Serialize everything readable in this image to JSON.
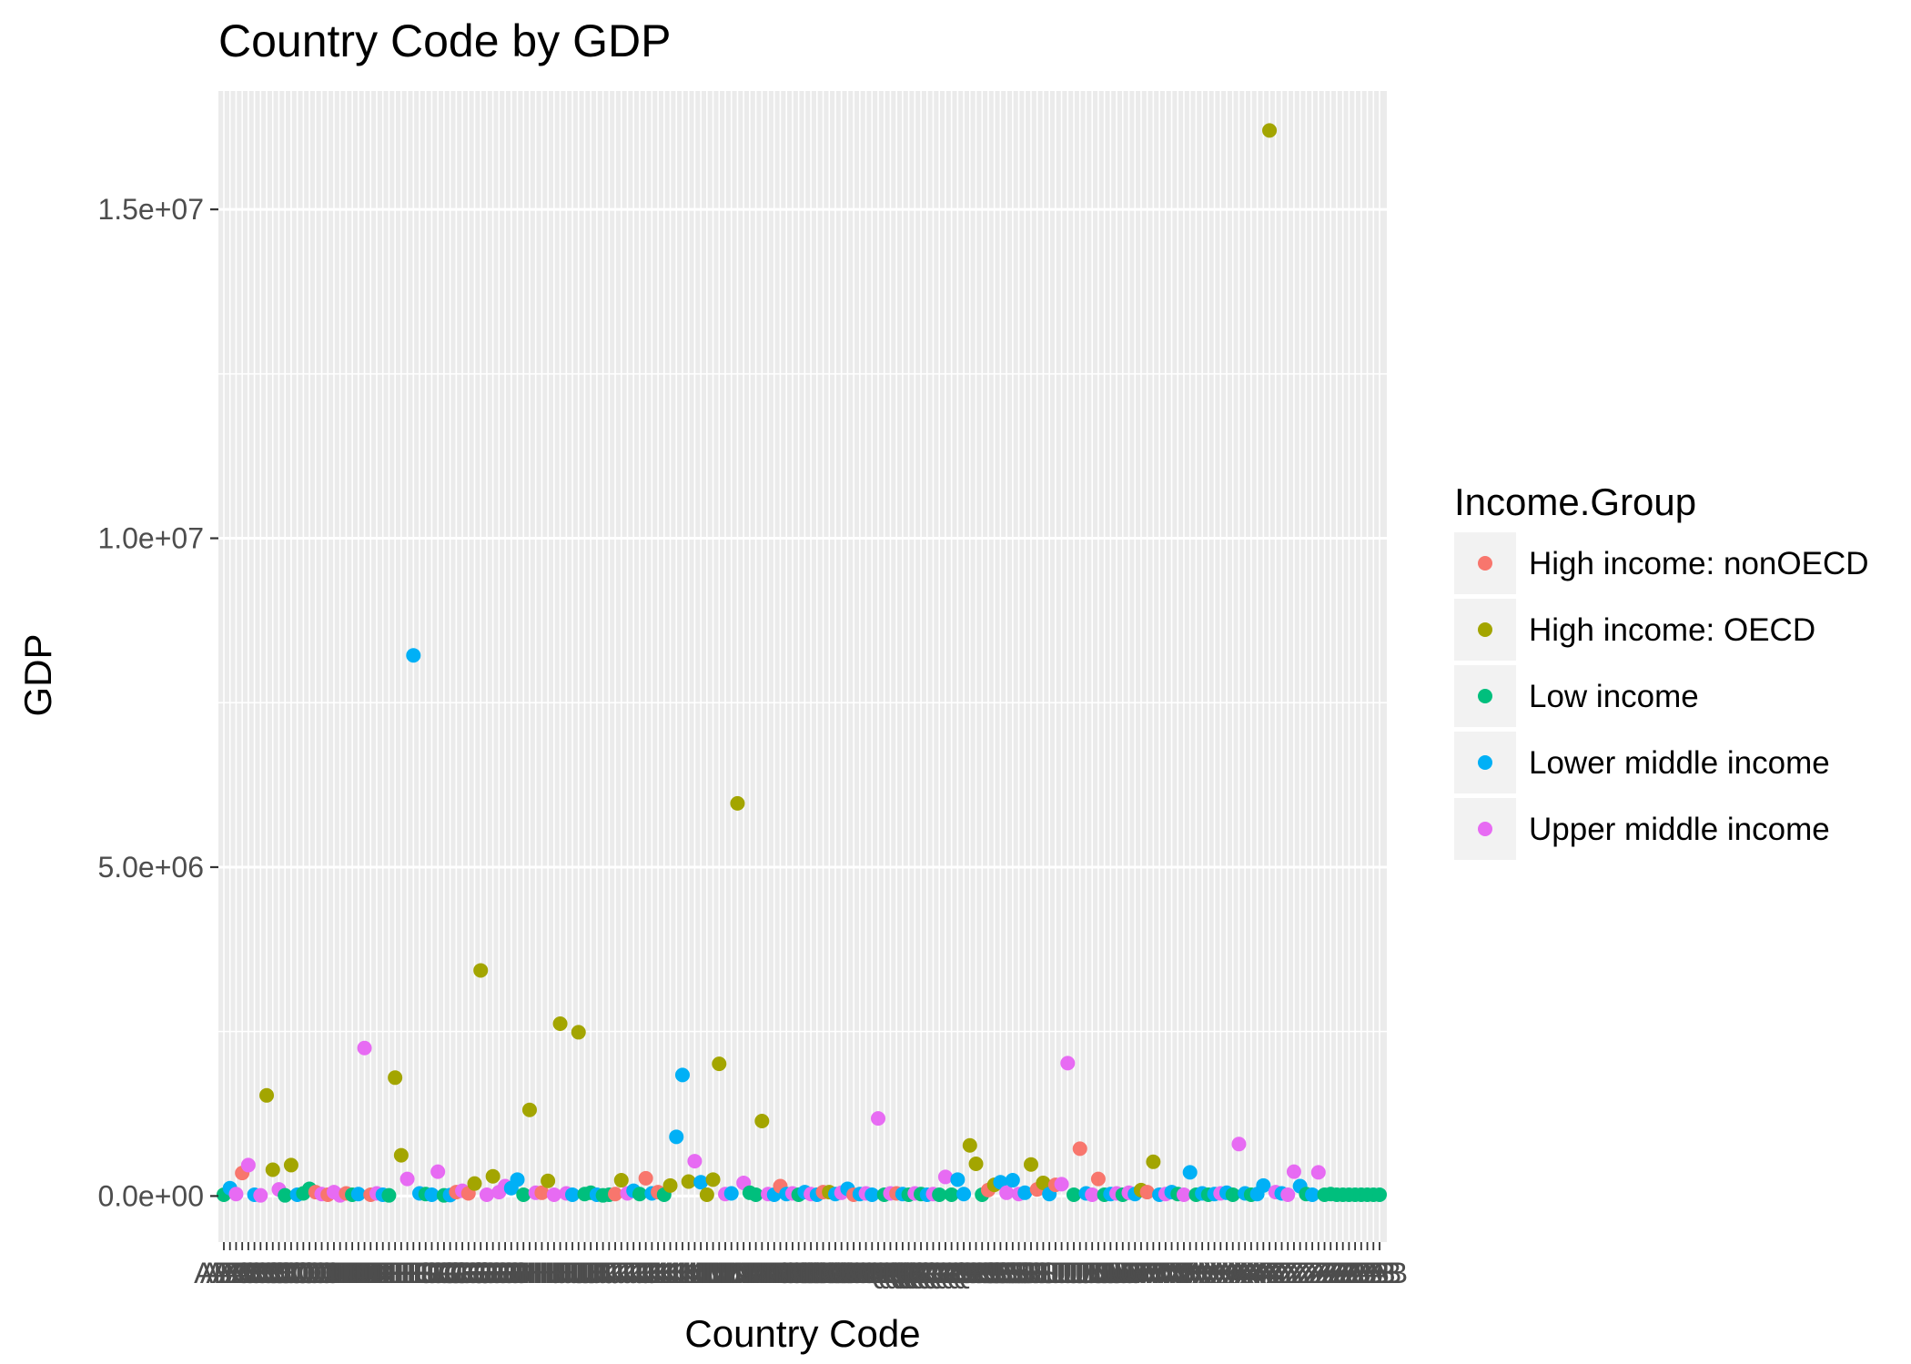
{
  "chart_data": {
    "type": "scatter",
    "title": "Country Code by GDP",
    "xlabel": "Country Code",
    "ylabel": "GDP",
    "ylim": [
      -700000,
      16800000
    ],
    "y_ticks": [
      {
        "value": 0,
        "label": "0.0e+00"
      },
      {
        "value": 5000000,
        "label": "5.0e+06"
      },
      {
        "value": 10000000,
        "label": "1.0e+07"
      },
      {
        "value": 15000000,
        "label": "1.5e+07"
      }
    ],
    "x_count": 190,
    "x_tick_text": "ABCDEFGHIJKLMNOPQRSTUVWXYZ",
    "grid": true,
    "legend": {
      "title": "Income.Group",
      "position": "right",
      "entries": [
        {
          "name": "High income: nonOECD",
          "color": "#F8766D"
        },
        {
          "name": "High income: OECD",
          "color": "#A3A500"
        },
        {
          "name": "Low income",
          "color": "#00BF7D"
        },
        {
          "name": "Lower middle income",
          "color": "#00B0F6"
        },
        {
          "name": "Upper middle income",
          "color": "#E76BF3"
        }
      ]
    },
    "points": [
      [
        0,
        2,
        20000
      ],
      [
        1,
        3,
        120000
      ],
      [
        2,
        4,
        30000
      ],
      [
        3,
        0,
        350000
      ],
      [
        4,
        4,
        470000
      ],
      [
        5,
        3,
        20000
      ],
      [
        6,
        4,
        10000
      ],
      [
        7,
        1,
        1530000
      ],
      [
        8,
        1,
        400000
      ],
      [
        9,
        4,
        100000
      ],
      [
        10,
        2,
        10000
      ],
      [
        11,
        1,
        470000
      ],
      [
        12,
        3,
        20000
      ],
      [
        13,
        2,
        40000
      ],
      [
        14,
        2,
        110000
      ],
      [
        15,
        0,
        60000
      ],
      [
        16,
        4,
        30000
      ],
      [
        17,
        0,
        20000
      ],
      [
        18,
        4,
        60000
      ],
      [
        19,
        4,
        10000
      ],
      [
        20,
        0,
        40000
      ],
      [
        21,
        2,
        20000
      ],
      [
        22,
        3,
        30000
      ],
      [
        23,
        4,
        2250000
      ],
      [
        24,
        0,
        20000
      ],
      [
        25,
        4,
        40000
      ],
      [
        26,
        3,
        20000
      ],
      [
        27,
        2,
        10000
      ],
      [
        28,
        1,
        1800000
      ],
      [
        29,
        1,
        620000
      ],
      [
        30,
        4,
        260000
      ],
      [
        31,
        3,
        8220000
      ],
      [
        32,
        3,
        40000
      ],
      [
        33,
        2,
        30000
      ],
      [
        34,
        3,
        20000
      ],
      [
        35,
        4,
        370000
      ],
      [
        36,
        2,
        10000
      ],
      [
        37,
        3,
        15000
      ],
      [
        38,
        0,
        60000
      ],
      [
        39,
        4,
        80000
      ],
      [
        40,
        0,
        40000
      ],
      [
        41,
        1,
        190000
      ],
      [
        42,
        1,
        3430000
      ],
      [
        43,
        4,
        20000
      ],
      [
        44,
        1,
        300000
      ],
      [
        45,
        4,
        60000
      ],
      [
        46,
        4,
        150000
      ],
      [
        47,
        3,
        120000
      ],
      [
        48,
        3,
        250000
      ],
      [
        49,
        2,
        20000
      ],
      [
        50,
        1,
        1310000
      ],
      [
        51,
        4,
        50000
      ],
      [
        52,
        0,
        50000
      ],
      [
        53,
        1,
        230000
      ],
      [
        54,
        4,
        20000
      ],
      [
        55,
        1,
        2620000
      ],
      [
        56,
        4,
        40000
      ],
      [
        57,
        3,
        20000
      ],
      [
        58,
        1,
        2490000
      ],
      [
        59,
        2,
        30000
      ],
      [
        60,
        2,
        50000
      ],
      [
        61,
        3,
        20000
      ],
      [
        62,
        2,
        10000
      ],
      [
        63,
        2,
        20000
      ],
      [
        64,
        0,
        30000
      ],
      [
        65,
        1,
        240000
      ],
      [
        66,
        4,
        40000
      ],
      [
        67,
        3,
        80000
      ],
      [
        68,
        2,
        30000
      ],
      [
        69,
        0,
        270000
      ],
      [
        70,
        3,
        40000
      ],
      [
        71,
        0,
        60000
      ],
      [
        72,
        2,
        20000
      ],
      [
        73,
        1,
        160000
      ],
      [
        74,
        3,
        900000
      ],
      [
        75,
        3,
        1840000
      ],
      [
        76,
        1,
        220000
      ],
      [
        77,
        4,
        530000
      ],
      [
        78,
        3,
        210000
      ],
      [
        79,
        1,
        20000
      ],
      [
        80,
        1,
        250000
      ],
      [
        81,
        1,
        2010000
      ],
      [
        82,
        4,
        30000
      ],
      [
        83,
        3,
        40000
      ],
      [
        84,
        1,
        5970000
      ],
      [
        85,
        4,
        200000
      ],
      [
        86,
        2,
        50000
      ],
      [
        87,
        2,
        20000
      ],
      [
        88,
        1,
        1140000
      ],
      [
        89,
        4,
        30000
      ],
      [
        90,
        3,
        20000
      ],
      [
        91,
        0,
        150000
      ],
      [
        92,
        3,
        30000
      ],
      [
        93,
        4,
        40000
      ],
      [
        94,
        2,
        20000
      ],
      [
        95,
        3,
        60000
      ],
      [
        96,
        4,
        30000
      ],
      [
        97,
        3,
        20000
      ],
      [
        98,
        0,
        60000
      ],
      [
        99,
        1,
        60000
      ],
      [
        100,
        3,
        30000
      ],
      [
        101,
        4,
        50000
      ],
      [
        102,
        3,
        110000
      ],
      [
        103,
        0,
        20000
      ],
      [
        104,
        3,
        30000
      ],
      [
        105,
        4,
        40000
      ],
      [
        106,
        3,
        20000
      ],
      [
        107,
        4,
        1180000
      ],
      [
        108,
        2,
        20000
      ],
      [
        109,
        4,
        40000
      ],
      [
        110,
        0,
        40000
      ],
      [
        111,
        3,
        30000
      ],
      [
        112,
        2,
        20000
      ],
      [
        113,
        4,
        40000
      ],
      [
        114,
        2,
        30000
      ],
      [
        115,
        3,
        20000
      ],
      [
        116,
        4,
        30000
      ],
      [
        117,
        2,
        20000
      ],
      [
        118,
        4,
        290000
      ],
      [
        119,
        2,
        20000
      ],
      [
        120,
        3,
        250000
      ],
      [
        121,
        3,
        30000
      ],
      [
        122,
        1,
        770000
      ],
      [
        123,
        1,
        490000
      ],
      [
        124,
        2,
        20000
      ],
      [
        125,
        0,
        90000
      ],
      [
        126,
        1,
        170000
      ],
      [
        127,
        3,
        210000
      ],
      [
        128,
        4,
        50000
      ],
      [
        129,
        3,
        240000
      ],
      [
        130,
        4,
        30000
      ],
      [
        131,
        3,
        50000
      ],
      [
        132,
        1,
        480000
      ],
      [
        133,
        0,
        100000
      ],
      [
        134,
        1,
        200000
      ],
      [
        135,
        3,
        30000
      ],
      [
        136,
        0,
        170000
      ],
      [
        137,
        4,
        180000
      ],
      [
        138,
        4,
        2020000
      ],
      [
        139,
        2,
        20000
      ],
      [
        140,
        0,
        720000
      ],
      [
        141,
        3,
        40000
      ],
      [
        142,
        4,
        20000
      ],
      [
        143,
        0,
        260000
      ],
      [
        144,
        2,
        20000
      ],
      [
        145,
        3,
        30000
      ],
      [
        146,
        4,
        40000
      ],
      [
        147,
        2,
        20000
      ],
      [
        148,
        4,
        50000
      ],
      [
        149,
        3,
        30000
      ],
      [
        150,
        1,
        90000
      ],
      [
        151,
        0,
        60000
      ],
      [
        152,
        1,
        520000
      ],
      [
        153,
        3,
        20000
      ],
      [
        154,
        4,
        30000
      ],
      [
        155,
        3,
        60000
      ],
      [
        156,
        2,
        30000
      ],
      [
        157,
        4,
        20000
      ],
      [
        158,
        3,
        360000
      ],
      [
        159,
        2,
        20000
      ],
      [
        160,
        3,
        40000
      ],
      [
        161,
        2,
        20000
      ],
      [
        162,
        3,
        30000
      ],
      [
        163,
        4,
        40000
      ],
      [
        164,
        3,
        50000
      ],
      [
        165,
        2,
        20000
      ],
      [
        166,
        4,
        790000
      ],
      [
        167,
        3,
        40000
      ],
      [
        168,
        2,
        20000
      ],
      [
        169,
        3,
        30000
      ],
      [
        170,
        3,
        160000
      ],
      [
        171,
        1,
        16200000
      ],
      [
        172,
        4,
        60000
      ],
      [
        173,
        3,
        40000
      ],
      [
        174,
        4,
        20000
      ],
      [
        175,
        4,
        370000
      ],
      [
        176,
        3,
        150000
      ],
      [
        177,
        2,
        30000
      ],
      [
        178,
        3,
        20000
      ],
      [
        179,
        4,
        360000
      ],
      [
        180,
        2,
        20000
      ],
      [
        181,
        2,
        30000
      ],
      [
        182,
        2,
        20000
      ],
      [
        183,
        2,
        20000
      ],
      [
        184,
        2,
        20000
      ],
      [
        185,
        2,
        20000
      ],
      [
        186,
        2,
        20000
      ],
      [
        187,
        2,
        20000
      ],
      [
        188,
        2,
        20000
      ],
      [
        189,
        2,
        20000
      ]
    ]
  }
}
